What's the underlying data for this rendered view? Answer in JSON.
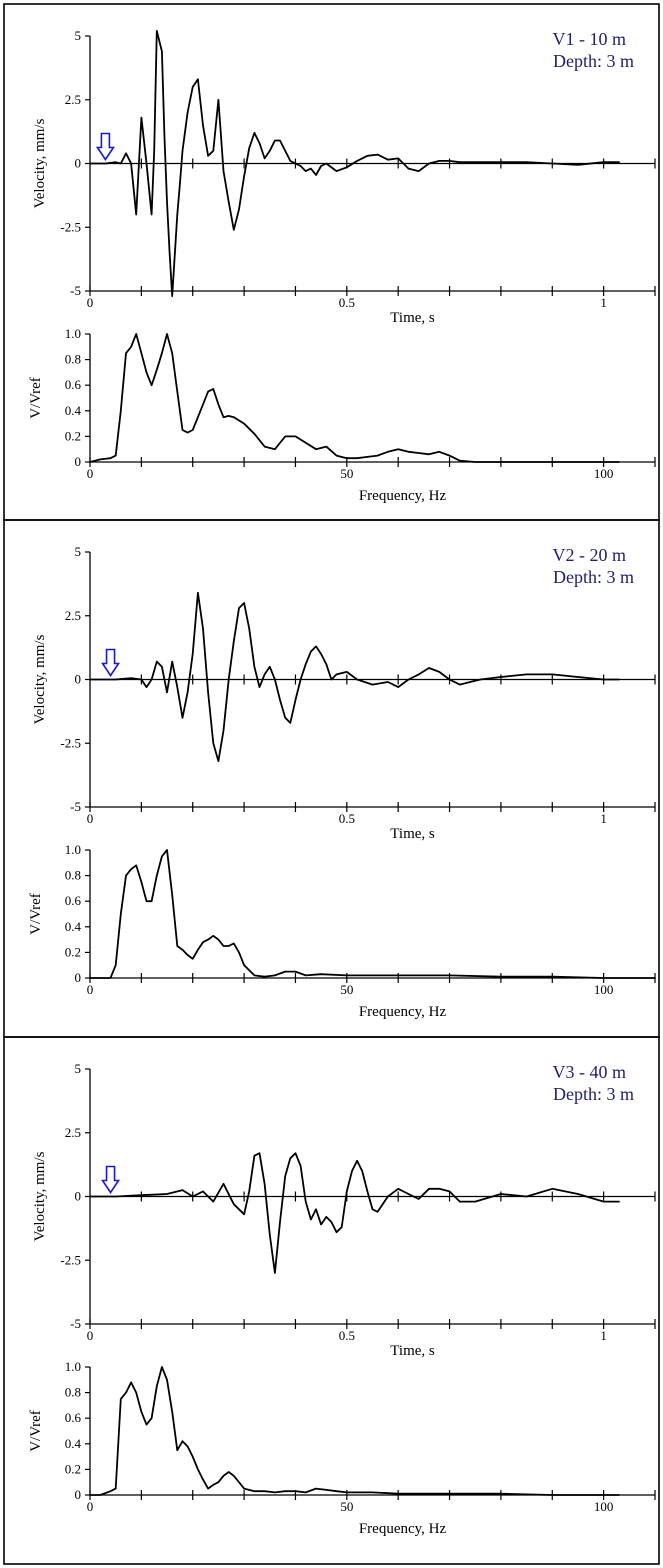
{
  "colors": {
    "title": "#1f1f6e",
    "arrow": "#1a1ad6",
    "trace": "#000000"
  },
  "icons": {
    "onset_marker": "down-arrow-icon"
  },
  "chart_data": [
    {
      "type": "line",
      "title_line1": "V1 - 10 m",
      "title_line2": "Depth: 3 m",
      "time": {
        "ylabel": "Velocity, mm/s",
        "xlabel": "Time, s",
        "xlim": [
          0,
          1.1
        ],
        "ylim": [
          -5,
          5
        ],
        "xticklabels": [
          "0",
          "0.5",
          "1"
        ],
        "yticklabels": [
          "5",
          "2.5",
          "0",
          "-2.5",
          "-5"
        ],
        "onset_marker_time": 0.03,
        "x": [
          0,
          0.03,
          0.05,
          0.06,
          0.07,
          0.08,
          0.09,
          0.1,
          0.11,
          0.12,
          0.125,
          0.13,
          0.14,
          0.145,
          0.15,
          0.155,
          0.16,
          0.17,
          0.175,
          0.18,
          0.19,
          0.2,
          0.21,
          0.22,
          0.23,
          0.24,
          0.25,
          0.26,
          0.27,
          0.28,
          0.29,
          0.3,
          0.31,
          0.32,
          0.33,
          0.34,
          0.35,
          0.36,
          0.37,
          0.38,
          0.39,
          0.4,
          0.41,
          0.42,
          0.43,
          0.44,
          0.45,
          0.46,
          0.48,
          0.5,
          0.52,
          0.54,
          0.56,
          0.58,
          0.6,
          0.62,
          0.64,
          0.66,
          0.68,
          0.7,
          0.72,
          0.74,
          0.76,
          0.8,
          0.85,
          0.9,
          0.95,
          1.0,
          1.03
        ],
        "y": [
          0,
          0,
          0.05,
          0,
          0.4,
          0,
          -2.0,
          1.8,
          0,
          -2.0,
          0.5,
          5.2,
          4.4,
          1.0,
          -1.5,
          -3.5,
          -5.2,
          -2.0,
          -0.8,
          0.5,
          2.0,
          3.0,
          3.3,
          1.5,
          0.3,
          0.5,
          2.5,
          -0.3,
          -1.5,
          -2.6,
          -1.8,
          -0.5,
          0.6,
          1.2,
          0.8,
          0.2,
          0.5,
          0.9,
          0.9,
          0.5,
          0.1,
          0,
          -0.1,
          -0.3,
          -0.2,
          -0.45,
          -0.1,
          0,
          -0.3,
          -0.15,
          0.1,
          0.3,
          0.35,
          0.15,
          0.2,
          -0.2,
          -0.3,
          0,
          0.1,
          0.1,
          0.05,
          0.05,
          0.05,
          0.05,
          0.05,
          0,
          -0.05,
          0.05,
          0.05
        ]
      },
      "spectrum": {
        "ylabel": "V/Vref",
        "xlabel": "Frequency, Hz",
        "xlim": [
          0,
          110
        ],
        "ylim": [
          0,
          1.0
        ],
        "xticklabels": [
          "0",
          "50",
          "100"
        ],
        "yticklabels": [
          "1.0",
          "0.8",
          "0.6",
          "0.4",
          "0.2",
          "0"
        ],
        "x": [
          0,
          2,
          4,
          5,
          6,
          7,
          8,
          9,
          10,
          11,
          12,
          13,
          14,
          15,
          16,
          17,
          18,
          19,
          20,
          21,
          22,
          23,
          24,
          25,
          26,
          27,
          28,
          30,
          32,
          34,
          36,
          38,
          40,
          42,
          44,
          46,
          48,
          50,
          52,
          54,
          56,
          58,
          60,
          62,
          64,
          66,
          68,
          70,
          72,
          75,
          80,
          90,
          100,
          103
        ],
        "y": [
          0,
          0.02,
          0.03,
          0.05,
          0.4,
          0.85,
          0.9,
          1.0,
          0.85,
          0.7,
          0.6,
          0.72,
          0.85,
          1.0,
          0.85,
          0.55,
          0.25,
          0.23,
          0.25,
          0.35,
          0.45,
          0.55,
          0.57,
          0.45,
          0.35,
          0.36,
          0.35,
          0.3,
          0.22,
          0.12,
          0.1,
          0.2,
          0.2,
          0.15,
          0.1,
          0.12,
          0.05,
          0.03,
          0.03,
          0.04,
          0.05,
          0.08,
          0.1,
          0.08,
          0.07,
          0.06,
          0.08,
          0.05,
          0.01,
          0,
          0,
          0,
          0,
          0
        ]
      }
    },
    {
      "type": "line",
      "title_line1": "V2 - 20 m",
      "title_line2": "Depth: 3 m",
      "time": {
        "ylabel": "Velocity, mm/s",
        "xlabel": "Time, s",
        "xlim": [
          0,
          1.1
        ],
        "ylim": [
          -5,
          5
        ],
        "xticklabels": [
          "0",
          "0.5",
          "1"
        ],
        "yticklabels": [
          "5",
          "2.5",
          "0",
          "-2.5",
          "-5"
        ],
        "onset_marker_time": 0.04,
        "x": [
          0,
          0.05,
          0.08,
          0.1,
          0.11,
          0.12,
          0.13,
          0.14,
          0.15,
          0.16,
          0.17,
          0.18,
          0.19,
          0.2,
          0.21,
          0.22,
          0.23,
          0.24,
          0.25,
          0.26,
          0.27,
          0.28,
          0.29,
          0.3,
          0.31,
          0.32,
          0.33,
          0.34,
          0.35,
          0.36,
          0.37,
          0.38,
          0.39,
          0.4,
          0.41,
          0.42,
          0.43,
          0.44,
          0.45,
          0.46,
          0.47,
          0.48,
          0.5,
          0.52,
          0.55,
          0.58,
          0.6,
          0.62,
          0.64,
          0.66,
          0.68,
          0.7,
          0.72,
          0.74,
          0.76,
          0.8,
          0.85,
          0.9,
          0.95,
          1.0,
          1.03
        ],
        "y": [
          0,
          0,
          0.05,
          0,
          -0.3,
          0,
          0.7,
          0.5,
          -0.5,
          0.7,
          -0.3,
          -1.5,
          -0.5,
          1.0,
          3.4,
          2.0,
          -0.5,
          -2.5,
          -3.2,
          -2.0,
          0,
          1.5,
          2.8,
          3.0,
          2.0,
          0.5,
          -0.3,
          0.2,
          0.5,
          0,
          -0.8,
          -1.5,
          -1.7,
          -0.8,
          0,
          0.6,
          1.1,
          1.3,
          1.0,
          0.6,
          0,
          0.2,
          0.3,
          0,
          -0.2,
          -0.1,
          -0.3,
          0,
          0.2,
          0.45,
          0.3,
          0,
          -0.2,
          -0.1,
          0,
          0.1,
          0.2,
          0.2,
          0.1,
          0,
          0
        ]
      },
      "spectrum": {
        "ylabel": "V/Vref",
        "xlabel": "Frequency, Hz",
        "xlim": [
          0,
          110
        ],
        "ylim": [
          0,
          1.0
        ],
        "xticklabels": [
          "0",
          "50",
          "100"
        ],
        "yticklabels": [
          "1.0",
          "0.8",
          "0.6",
          "0.4",
          "0.2",
          "0"
        ],
        "x": [
          0,
          2,
          4,
          5,
          6,
          7,
          8,
          9,
          10,
          11,
          12,
          13,
          14,
          15,
          16,
          17,
          18,
          19,
          20,
          21,
          22,
          23,
          24,
          25,
          26,
          27,
          28,
          29,
          30,
          32,
          34,
          36,
          38,
          40,
          42,
          45,
          50,
          55,
          60,
          70,
          80,
          90,
          100,
          110
        ],
        "y": [
          0,
          0,
          0,
          0.1,
          0.5,
          0.8,
          0.85,
          0.88,
          0.75,
          0.6,
          0.6,
          0.8,
          0.95,
          1.0,
          0.65,
          0.25,
          0.22,
          0.18,
          0.15,
          0.22,
          0.28,
          0.3,
          0.33,
          0.3,
          0.25,
          0.25,
          0.27,
          0.2,
          0.1,
          0.02,
          0.01,
          0.02,
          0.05,
          0.05,
          0.02,
          0.03,
          0.02,
          0.02,
          0.02,
          0.02,
          0.01,
          0.01,
          0,
          0
        ]
      }
    },
    {
      "type": "line",
      "title_line1": "V3 - 40 m",
      "title_line2": "Depth: 3 m",
      "time": {
        "ylabel": "Velocity, mm/s",
        "xlabel": "Time, s",
        "xlim": [
          0,
          1.1
        ],
        "ylim": [
          -5,
          5
        ],
        "xticklabels": [
          "0",
          "0.5",
          "1"
        ],
        "yticklabels": [
          "5",
          "2.5",
          "0",
          "-2.5",
          "-5"
        ],
        "onset_marker_time": 0.04,
        "x": [
          0,
          0.05,
          0.1,
          0.15,
          0.18,
          0.2,
          0.22,
          0.24,
          0.26,
          0.28,
          0.3,
          0.31,
          0.32,
          0.33,
          0.34,
          0.35,
          0.36,
          0.37,
          0.38,
          0.39,
          0.4,
          0.41,
          0.42,
          0.43,
          0.44,
          0.45,
          0.46,
          0.47,
          0.48,
          0.49,
          0.5,
          0.51,
          0.52,
          0.53,
          0.54,
          0.55,
          0.56,
          0.58,
          0.6,
          0.62,
          0.64,
          0.66,
          0.68,
          0.7,
          0.72,
          0.75,
          0.8,
          0.85,
          0.9,
          0.95,
          1.0,
          1.03
        ],
        "y": [
          0,
          0,
          0.05,
          0.1,
          0.25,
          0,
          0.2,
          -0.2,
          0.5,
          -0.3,
          -0.7,
          0.2,
          1.6,
          1.7,
          0.5,
          -1.5,
          -3.0,
          -1.0,
          0.8,
          1.5,
          1.7,
          1.2,
          -0.2,
          -0.9,
          -0.5,
          -1.1,
          -0.8,
          -1.0,
          -1.4,
          -1.2,
          0.2,
          1.0,
          1.4,
          1.0,
          0.2,
          -0.5,
          -0.6,
          0,
          0.3,
          0.1,
          -0.1,
          0.3,
          0.3,
          0.2,
          -0.2,
          -0.2,
          0.1,
          0,
          0.3,
          0.1,
          -0.2,
          -0.2
        ]
      },
      "spectrum": {
        "ylabel": "V/Vref",
        "xlabel": "Frequency, Hz",
        "xlim": [
          0,
          110
        ],
        "ylim": [
          0,
          1.0
        ],
        "xticklabels": [
          "0",
          "50",
          "100"
        ],
        "yticklabels": [
          "1.0",
          "0.8",
          "0.6",
          "0.4",
          "0.2",
          "0"
        ],
        "x": [
          0,
          2,
          4,
          5,
          6,
          7,
          8,
          9,
          10,
          11,
          12,
          13,
          14,
          15,
          16,
          17,
          18,
          19,
          20,
          21,
          22,
          23,
          24,
          25,
          26,
          27,
          28,
          29,
          30,
          32,
          34,
          36,
          38,
          40,
          42,
          44,
          46,
          48,
          50,
          55,
          60,
          65,
          70,
          80,
          90,
          100,
          103
        ],
        "y": [
          0,
          0,
          0.03,
          0.05,
          0.75,
          0.8,
          0.88,
          0.8,
          0.65,
          0.55,
          0.6,
          0.85,
          1.0,
          0.9,
          0.65,
          0.35,
          0.42,
          0.38,
          0.3,
          0.2,
          0.12,
          0.05,
          0.08,
          0.1,
          0.15,
          0.18,
          0.15,
          0.1,
          0.05,
          0.03,
          0.03,
          0.02,
          0.03,
          0.03,
          0.02,
          0.05,
          0.04,
          0.03,
          0.02,
          0.02,
          0.01,
          0.01,
          0.01,
          0.01,
          0,
          0,
          0
        ]
      }
    }
  ]
}
